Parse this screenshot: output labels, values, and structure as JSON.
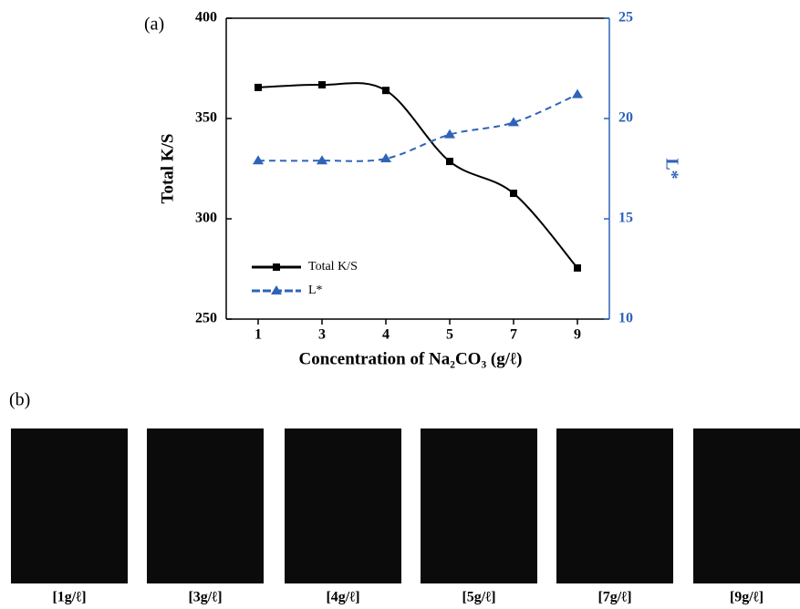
{
  "chart_data": {
    "type": "line",
    "panel_label": "(a)",
    "x_label": "Concentration of Na₂CO₃ (g/ℓ)",
    "y_label": "Total K/S",
    "y2_label": "L*",
    "categories": [
      "1",
      "3",
      "4",
      "5",
      "7",
      "9"
    ],
    "series": [
      {
        "name": "Total K/S",
        "color": "#000000",
        "marker": "square",
        "dashed": false,
        "values": [
          365.5,
          366.8,
          364,
          328.6,
          312.7,
          275.5
        ]
      },
      {
        "name": "L*",
        "color": "#2e63b8",
        "marker": "triangle",
        "dashed": true,
        "axis": "y2",
        "values": [
          17.9,
          17.9,
          18.0,
          19.2,
          19.8,
          21.2
        ]
      }
    ],
    "ylim": [
      250,
      400
    ],
    "yticks": [
      250,
      300,
      350,
      400
    ],
    "y2lim": [
      10,
      25
    ],
    "y2ticks": [
      10,
      15,
      20,
      25
    ],
    "legend": "lower-left"
  },
  "panel_b": {
    "label": "(b)",
    "swatches": [
      "[1g/ℓ]",
      "[3g/ℓ]",
      "[4g/ℓ]",
      "[5g/ℓ]",
      "[7g/ℓ]",
      "[9g/ℓ]"
    ]
  }
}
